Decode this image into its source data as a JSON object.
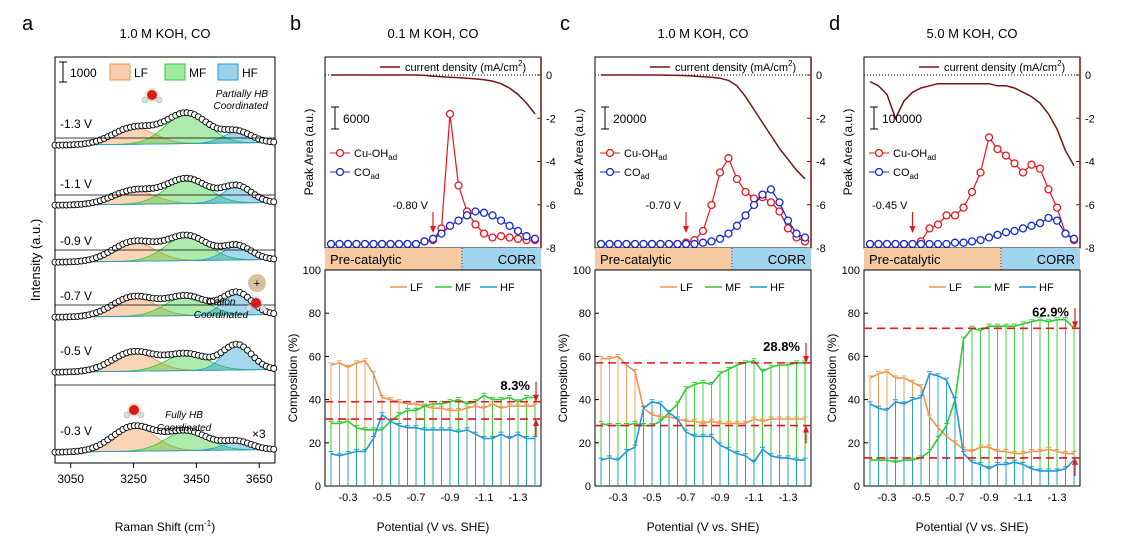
{
  "panel_labels": [
    "a",
    "b",
    "c",
    "d"
  ],
  "panel_titles": [
    "1.0 M KOH, CO",
    "0.1 M KOH, CO",
    "1.0 M KOH, CO",
    "5.0 M KOH, CO"
  ],
  "colors": {
    "LF": "#f0944a",
    "MF": "#2fcc2f",
    "HF": "#1e9ad6",
    "cu_oh": "#e8141e",
    "co_ad": "#1428d2",
    "current": "#7a1414",
    "ref_line": "#e8141e",
    "precat": "#f6c9a0",
    "corr": "#9fd3ee"
  },
  "common": {
    "current_legend": "current density (mA/cm",
    "current_legend_sup": "2",
    "current_legend_end": ")",
    "peak_ylabel": "Peak Area (a.u.)",
    "comp_ylabel": "Composition (%)",
    "xlabel": "Potential (V vs. SHE)",
    "cu_oh_label": "Cu-OH",
    "cu_oh_sub": "ad",
    "co_label": "CO",
    "co_sub": "ad",
    "precat_label": "Pre-catalytic",
    "corr_label": "CORR",
    "lf": "LF",
    "mf": "MF",
    "hf": "HF",
    "x_ticks": [
      "-0.3",
      "-0.5",
      "-0.7",
      "-0.9",
      "-1.1",
      "-1.3"
    ],
    "right_ticks": [
      "0",
      "-2",
      "-4",
      "-6",
      "-8"
    ],
    "comp_ticks": [
      "0",
      "20",
      "40",
      "60",
      "80",
      "100"
    ]
  },
  "panel_a": {
    "scale_bar": "1000",
    "legend": [
      "LF",
      "MF",
      "HF"
    ],
    "potentials": [
      "-1.3 V",
      "-1.1 V",
      "-0.9 V",
      "-0.7 V",
      "-0.5 V",
      "-0.3 V"
    ],
    "annotation_top": [
      "Partially HB",
      "Coordinated"
    ],
    "annotation_mid": [
      "Cation",
      "Coordinated"
    ],
    "annotation_bottom": [
      "Fully HB",
      "Coordinated"
    ],
    "multiplier": "×3",
    "xlabel": "Raman Shift (cm",
    "xlabel_sup": "-1",
    "xlabel_end": ")",
    "ylabel": "Intensity (a.u.)",
    "x_ticks": [
      "3050",
      "3250",
      "3450",
      "3650"
    ],
    "cation_symbol": "+"
  },
  "chart_data": [
    {
      "type": "area",
      "panel": "a",
      "title": "1.0 M KOH, CO",
      "xlabel": "Raman Shift (cm-1)",
      "ylabel": "Intensity (a.u.)",
      "xlim": [
        3000,
        3700
      ],
      "series": [
        {
          "name": "-1.3 V",
          "LF": 0.3,
          "MF": 0.55,
          "HF": 0.2
        },
        {
          "name": "-1.1 V",
          "LF": 0.25,
          "MF": 0.45,
          "HF": 0.3
        },
        {
          "name": "-0.9 V",
          "LF": 0.35,
          "MF": 0.45,
          "HF": 0.25
        },
        {
          "name": "-0.7 V",
          "LF": 0.35,
          "MF": 0.35,
          "HF": 0.4
        },
        {
          "name": "-0.5 V",
          "LF": 0.35,
          "MF": 0.3,
          "HF": 0.45
        },
        {
          "name": "-0.3 V",
          "LF": 0.45,
          "MF": 0.35,
          "HF": 0.15
        }
      ]
    },
    {
      "type": "line",
      "panel": "b",
      "title": "0.1 M KOH, CO",
      "scale_bar": "6000",
      "marker_potential": "-0.80 V",
      "mf_label": "8.3%",
      "x": [
        -0.2,
        -0.25,
        -0.3,
        -0.35,
        -0.4,
        -0.45,
        -0.5,
        -0.55,
        -0.6,
        -0.65,
        -0.7,
        -0.75,
        -0.8,
        -0.85,
        -0.9,
        -0.95,
        -1.0,
        -1.05,
        -1.1,
        -1.15,
        -1.2,
        -1.25,
        -1.3,
        -1.35,
        -1.4
      ],
      "cu_oh": [
        0,
        0,
        0,
        0,
        0,
        0,
        0,
        0,
        0,
        0,
        0,
        0.02,
        0.03,
        0.12,
        1.0,
        0.45,
        0.25,
        0.15,
        0.08,
        0.05,
        0.06,
        0.05,
        0.04,
        0.03,
        0.03
      ],
      "co_ad": [
        0,
        0,
        0,
        0,
        0,
        0,
        0,
        0,
        0,
        0,
        0,
        0.02,
        0.04,
        0.08,
        0.14,
        0.18,
        0.22,
        0.25,
        0.24,
        0.22,
        0.18,
        0.14,
        0.1,
        0.06,
        0.04
      ],
      "current": [
        0,
        0,
        0,
        0,
        0,
        0,
        0,
        0,
        0,
        0,
        0,
        -0.02,
        -0.05,
        -0.08,
        -0.1,
        -0.12,
        -0.15,
        -0.18,
        -0.22,
        -0.28,
        -0.4,
        -0.6,
        -0.9,
        -1.3,
        -1.8
      ],
      "LF": [
        56,
        57,
        55,
        57,
        58,
        52,
        41,
        40,
        39,
        38,
        38,
        37,
        36,
        36,
        35,
        35,
        36,
        37,
        36,
        38,
        36,
        37,
        37,
        37,
        37
      ],
      "MF": [
        29,
        29,
        30,
        27,
        26,
        26,
        26,
        30,
        33,
        35,
        35,
        37,
        38,
        38,
        39,
        40,
        38,
        39,
        42,
        40,
        40,
        41,
        39,
        41,
        41
      ],
      "HF": [
        15,
        14,
        15,
        16,
        16,
        22,
        33,
        30,
        28,
        27,
        27,
        26,
        26,
        26,
        26,
        25,
        26,
        24,
        22,
        22,
        24,
        22,
        24,
        22,
        22
      ],
      "ref_upper": 39,
      "ref_lower": 31
    },
    {
      "type": "line",
      "panel": "c",
      "title": "1.0 M KOH, CO",
      "scale_bar": "20000",
      "marker_potential": "-0.70 V",
      "mf_label": "28.8%",
      "x": [
        -0.2,
        -0.25,
        -0.3,
        -0.35,
        -0.4,
        -0.45,
        -0.5,
        -0.55,
        -0.6,
        -0.65,
        -0.7,
        -0.75,
        -0.8,
        -0.85,
        -0.9,
        -0.95,
        -1.0,
        -1.05,
        -1.1,
        -1.15,
        -1.2,
        -1.25,
        -1.3,
        -1.35,
        -1.4
      ],
      "cu_oh": [
        0,
        0,
        0,
        0,
        0,
        0,
        0,
        0,
        0,
        0,
        0.01,
        0.03,
        0.1,
        0.3,
        0.55,
        0.66,
        0.5,
        0.4,
        0.35,
        0.36,
        0.32,
        0.25,
        0.12,
        0.05,
        0.02
      ],
      "co_ad": [
        0,
        0,
        0,
        0,
        0,
        0,
        0,
        0,
        0,
        0,
        0,
        0,
        0.01,
        0.02,
        0.04,
        0.08,
        0.14,
        0.22,
        0.3,
        0.38,
        0.42,
        0.32,
        0.18,
        0.08,
        0.05
      ],
      "current": [
        0,
        0,
        0,
        0,
        0,
        0,
        0,
        0,
        -0.01,
        -0.02,
        -0.03,
        -0.05,
        -0.08,
        -0.1,
        -0.15,
        -0.25,
        -0.5,
        -1.0,
        -1.6,
        -2.2,
        -2.8,
        -3.4,
        -3.9,
        -4.4,
        -4.8
      ],
      "LF": [
        59,
        59,
        60,
        56,
        53,
        36,
        33,
        32,
        32,
        31,
        30,
        30,
        29,
        30,
        29,
        29,
        29,
        29,
        31,
        30,
        31,
        31,
        31,
        31,
        31
      ],
      "MF": [
        29,
        28,
        28,
        28,
        29,
        28,
        28,
        30,
        34,
        38,
        45,
        47,
        48,
        47,
        52,
        54,
        56,
        57,
        58,
        53,
        55,
        56,
        56,
        57,
        57
      ],
      "HF": [
        12,
        13,
        12,
        16,
        18,
        36,
        39,
        38,
        34,
        31,
        25,
        23,
        23,
        23,
        19,
        17,
        15,
        14,
        11,
        17,
        14,
        13,
        13,
        12,
        12
      ],
      "ref_upper": 57,
      "ref_lower": 28
    },
    {
      "type": "line",
      "panel": "d",
      "title": "5.0 M KOH, CO",
      "scale_bar": "100000",
      "marker_potential": "-0.45 V",
      "mf_label": "62.9%",
      "x": [
        -0.2,
        -0.25,
        -0.3,
        -0.35,
        -0.4,
        -0.45,
        -0.5,
        -0.55,
        -0.6,
        -0.65,
        -0.7,
        -0.75,
        -0.8,
        -0.85,
        -0.9,
        -0.95,
        -1.0,
        -1.05,
        -1.1,
        -1.15,
        -1.2,
        -1.25,
        -1.3,
        -1.35,
        -1.4
      ],
      "cu_oh": [
        0,
        0,
        0,
        0,
        0,
        0,
        0.02,
        0.12,
        0.15,
        0.22,
        0.22,
        0.28,
        0.4,
        0.55,
        0.82,
        0.73,
        0.68,
        0.62,
        0.55,
        0.61,
        0.58,
        0.42,
        0.28,
        0.08,
        0.03
      ],
      "co_ad": [
        0,
        0,
        0,
        0,
        0,
        0,
        0,
        0,
        0,
        0,
        0.01,
        0.01,
        0.02,
        0.03,
        0.05,
        0.07,
        0.09,
        0.1,
        0.12,
        0.14,
        0.16,
        0.2,
        0.18,
        0.08,
        0.04
      ],
      "current": [
        -0.3,
        -0.5,
        -0.9,
        -2.0,
        -1.2,
        -0.8,
        -0.6,
        -0.5,
        -0.4,
        -0.4,
        -0.4,
        -0.4,
        -0.4,
        -0.4,
        -0.4,
        -0.5,
        -0.5,
        -0.6,
        -0.8,
        -1.0,
        -1.3,
        -1.8,
        -2.5,
        -3.5,
        -4.2
      ],
      "LF": [
        50,
        52,
        53,
        50,
        50,
        48,
        46,
        32,
        27,
        23,
        20,
        17,
        16,
        18,
        18,
        16,
        16,
        15,
        15,
        16,
        16,
        17,
        16,
        15,
        15
      ],
      "MF": [
        12,
        12,
        12,
        11,
        12,
        12,
        13,
        16,
        22,
        28,
        40,
        68,
        73,
        72,
        74,
        74,
        74,
        74,
        75,
        76,
        77,
        76,
        77,
        77,
        73
      ],
      "HF": [
        38,
        36,
        35,
        39,
        38,
        40,
        41,
        52,
        51,
        49,
        40,
        15,
        11,
        10,
        8,
        10,
        10,
        11,
        10,
        8,
        7,
        7,
        7,
        8,
        12
      ],
      "ref_upper": 73,
      "ref_lower": 13
    }
  ]
}
